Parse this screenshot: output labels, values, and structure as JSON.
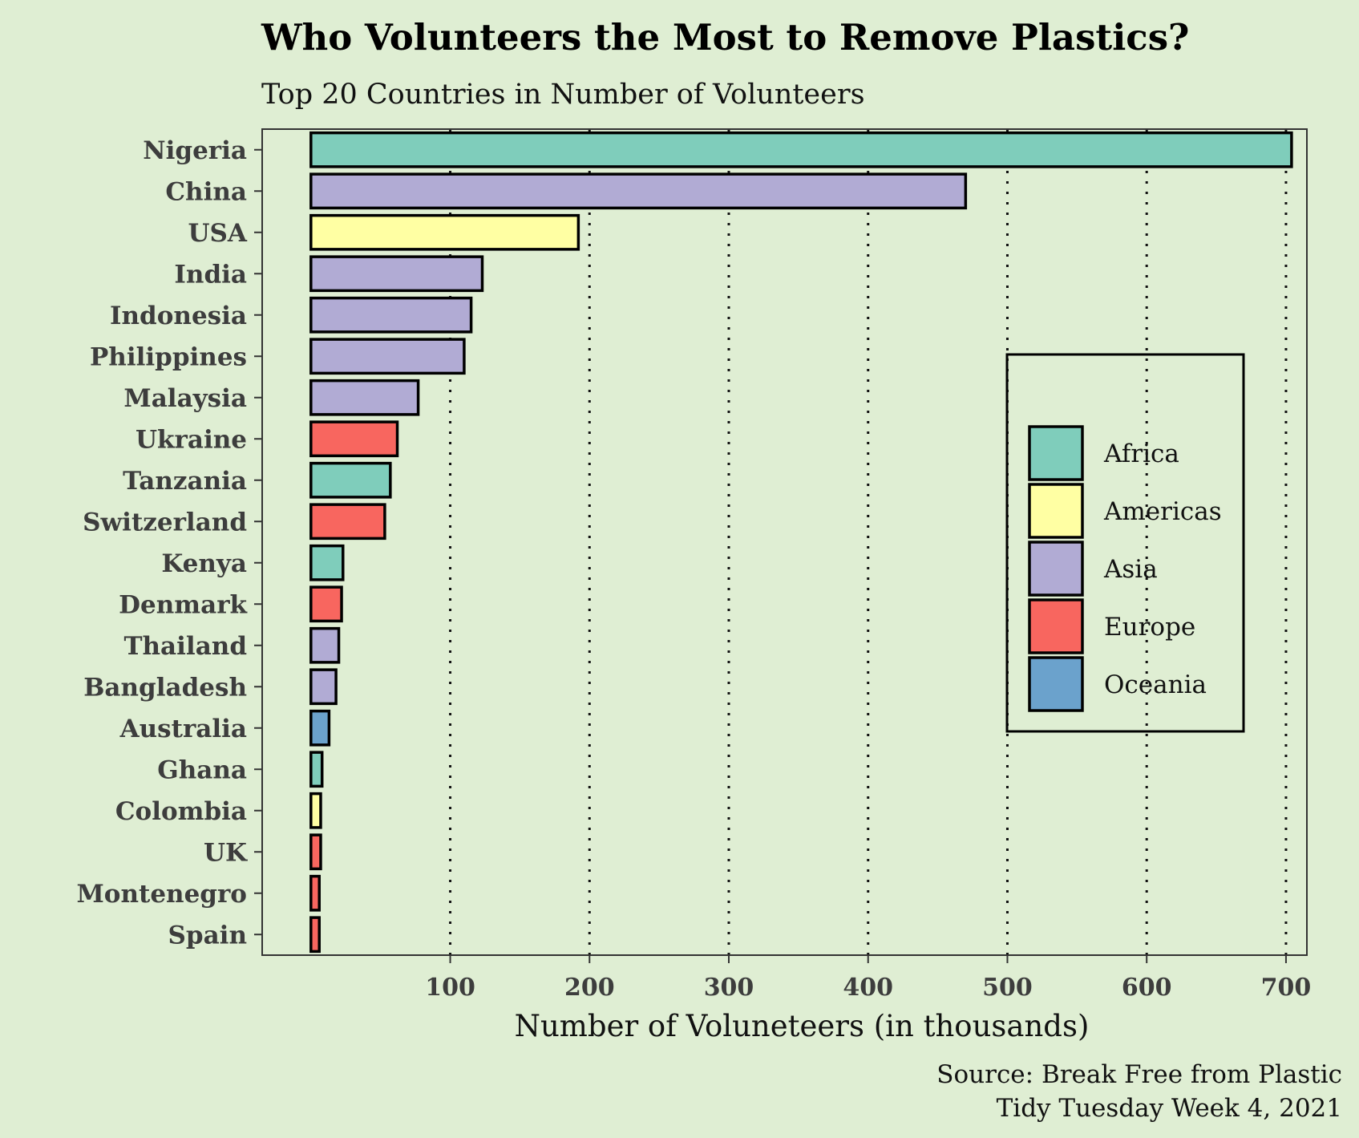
{
  "chart_data": {
    "type": "bar",
    "orientation": "horizontal",
    "title": "Who Volunteers the Most to Remove Plastics?",
    "subtitle": "Top 20 Countries in Number of Volunteers",
    "xlabel": "Number of Voluneteers (in thousands)",
    "ylabel": "",
    "xlim": [
      -35,
      715
    ],
    "xticks": [
      100,
      200,
      300,
      400,
      500,
      600,
      700
    ],
    "grid": "vertical dotted, behind bars",
    "legend_position": "right",
    "colors": {
      "Africa": "#7fcdbb",
      "Americas": "#ffffa3",
      "Asia": "#b1abd4",
      "Europe": "#f8665f",
      "Oceania": "#6ba2cc",
      "background": "#dfeed3",
      "text": "#3d3d3d"
    },
    "legend": [
      "Africa",
      "Americas",
      "Asia",
      "Europe",
      "Oceania"
    ],
    "categories": [
      "Nigeria",
      "China",
      "USA",
      "India",
      "Indonesia",
      "Philippines",
      "Malaysia",
      "Ukraine",
      "Tanzania",
      "Switzerland",
      "Kenya",
      "Denmark",
      "Thailand",
      "Bangladesh",
      "Australia",
      "Ghana",
      "Colombia",
      "UK",
      "Montenegro",
      "Spain"
    ],
    "values": [
      704,
      470,
      192,
      123,
      115,
      110,
      77,
      62,
      57,
      53,
      23,
      22,
      20,
      18,
      13,
      8,
      7,
      7,
      6,
      6
    ],
    "regions": [
      "Africa",
      "Asia",
      "Americas",
      "Asia",
      "Asia",
      "Asia",
      "Asia",
      "Europe",
      "Africa",
      "Europe",
      "Africa",
      "Europe",
      "Asia",
      "Asia",
      "Oceania",
      "Africa",
      "Americas",
      "Europe",
      "Europe",
      "Europe"
    ]
  },
  "caption": {
    "line1": "Source: Break Free from Plastic",
    "line2": "Tidy Tuesday Week 4, 2021"
  }
}
